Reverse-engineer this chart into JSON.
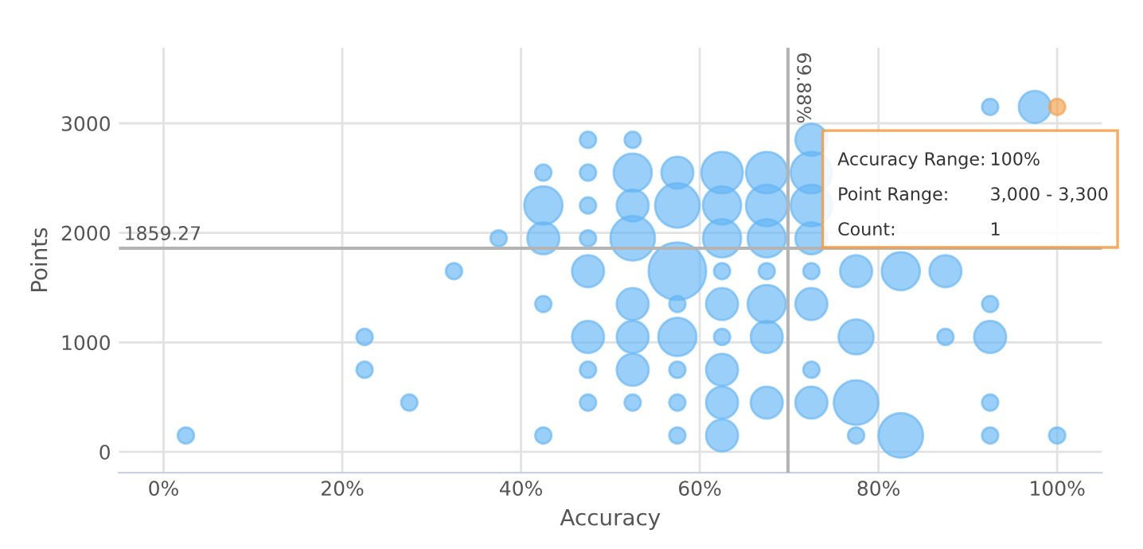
{
  "chart_data": {
    "type": "bubble",
    "xlabel": "Accuracy",
    "ylabel": "Points",
    "xlim": [
      -5,
      105
    ],
    "ylim": [
      -190,
      3690
    ],
    "xticks": [
      {
        "value": 0,
        "label": "0%"
      },
      {
        "value": 20,
        "label": "20%"
      },
      {
        "value": 40,
        "label": "40%"
      },
      {
        "value": 60,
        "label": "60%"
      },
      {
        "value": 80,
        "label": "80%"
      },
      {
        "value": 100,
        "label": "100%"
      }
    ],
    "yticks": [
      0,
      1000,
      2000,
      3000
    ],
    "grid": true,
    "ref_lines": [
      {
        "axis": "y",
        "value": 1859.27,
        "label": "1859.27",
        "color": "#b4b4b4"
      },
      {
        "axis": "x",
        "value": 69.88,
        "label": "69.88%",
        "color": "#b4b4b4"
      }
    ],
    "annotations": [
      "Accuracy Range:",
      "100%",
      "Point Range:",
      "3,000 - 3,300",
      "Count:",
      "1"
    ],
    "series": [
      {
        "color": "#64b5f6",
        "x": [
          2.5,
          22.5,
          22.5,
          27.5,
          32.5,
          37.5,
          42.5,
          42.5,
          42.5,
          42.5,
          42.5,
          47.5,
          47.5,
          47.5,
          47.5,
          47.5,
          47.5,
          47.5,
          47.5,
          52.5,
          52.5,
          52.5,
          52.5,
          52.5,
          52.5,
          52.5,
          52.5,
          57.5,
          57.5,
          57.5,
          57.5,
          57.5,
          57.5,
          57.5,
          57.5,
          62.5,
          62.5,
          62.5,
          62.5,
          62.5,
          62.5,
          62.5,
          62.5,
          62.5,
          67.5,
          67.5,
          67.5,
          67.5,
          67.5,
          67.5,
          67.5,
          72.5,
          72.5,
          72.5,
          72.5,
          72.5,
          72.5,
          72.5,
          72.5,
          77.5,
          77.5,
          77.5,
          77.5,
          82.5,
          82.5,
          87.5,
          87.5,
          92.5,
          92.5,
          92.5,
          92.5,
          92.5,
          97.5,
          100
        ],
        "values": [
          150,
          1050,
          750,
          450,
          1650,
          1950,
          2550,
          2250,
          1950,
          1350,
          150,
          2850,
          2550,
          2250,
          1950,
          1650,
          1050,
          750,
          450,
          2850,
          2550,
          2250,
          1950,
          1350,
          1050,
          750,
          450,
          2550,
          2250,
          1650,
          1350,
          1050,
          750,
          450,
          150,
          2550,
          2250,
          1950,
          1650,
          1350,
          1050,
          750,
          450,
          150,
          2550,
          2250,
          1950,
          1650,
          1350,
          1050,
          450,
          2850,
          2550,
          2250,
          1950,
          1650,
          1350,
          750,
          450,
          1650,
          1050,
          450,
          150,
          1650,
          150,
          1650,
          1050,
          3150,
          1350,
          1050,
          450,
          150,
          3150,
          150
        ],
        "sizes": [
          0.08,
          0.08,
          0.08,
          0.08,
          0.08,
          0.08,
          0.08,
          0.44,
          0.31,
          0.08,
          0.08,
          0.08,
          0.08,
          0.08,
          0.08,
          0.31,
          0.31,
          0.08,
          0.08,
          0.08,
          0.44,
          0.31,
          0.6,
          0.31,
          0.31,
          0.31,
          0.08,
          0.31,
          0.6,
          1,
          0.08,
          0.44,
          0.08,
          0.08,
          0.08,
          0.52,
          0.44,
          0.44,
          0.08,
          0.31,
          0.08,
          0.31,
          0.31,
          0.31,
          0.52,
          0.52,
          0.44,
          0.08,
          0.44,
          0.31,
          0.31,
          0.31,
          0.52,
          0.52,
          0.31,
          0.08,
          0.31,
          0.08,
          0.31,
          0.31,
          0.37,
          0.6,
          0.08,
          0.44,
          0.6,
          0.31,
          0.08,
          0.08,
          0.08,
          0.31,
          0.08,
          0.08,
          0.31,
          0.08
        ]
      },
      {
        "color": "#f5a04a",
        "x": [
          100
        ],
        "values": [
          3150
        ],
        "sizes": [
          0.08
        ]
      }
    ]
  }
}
